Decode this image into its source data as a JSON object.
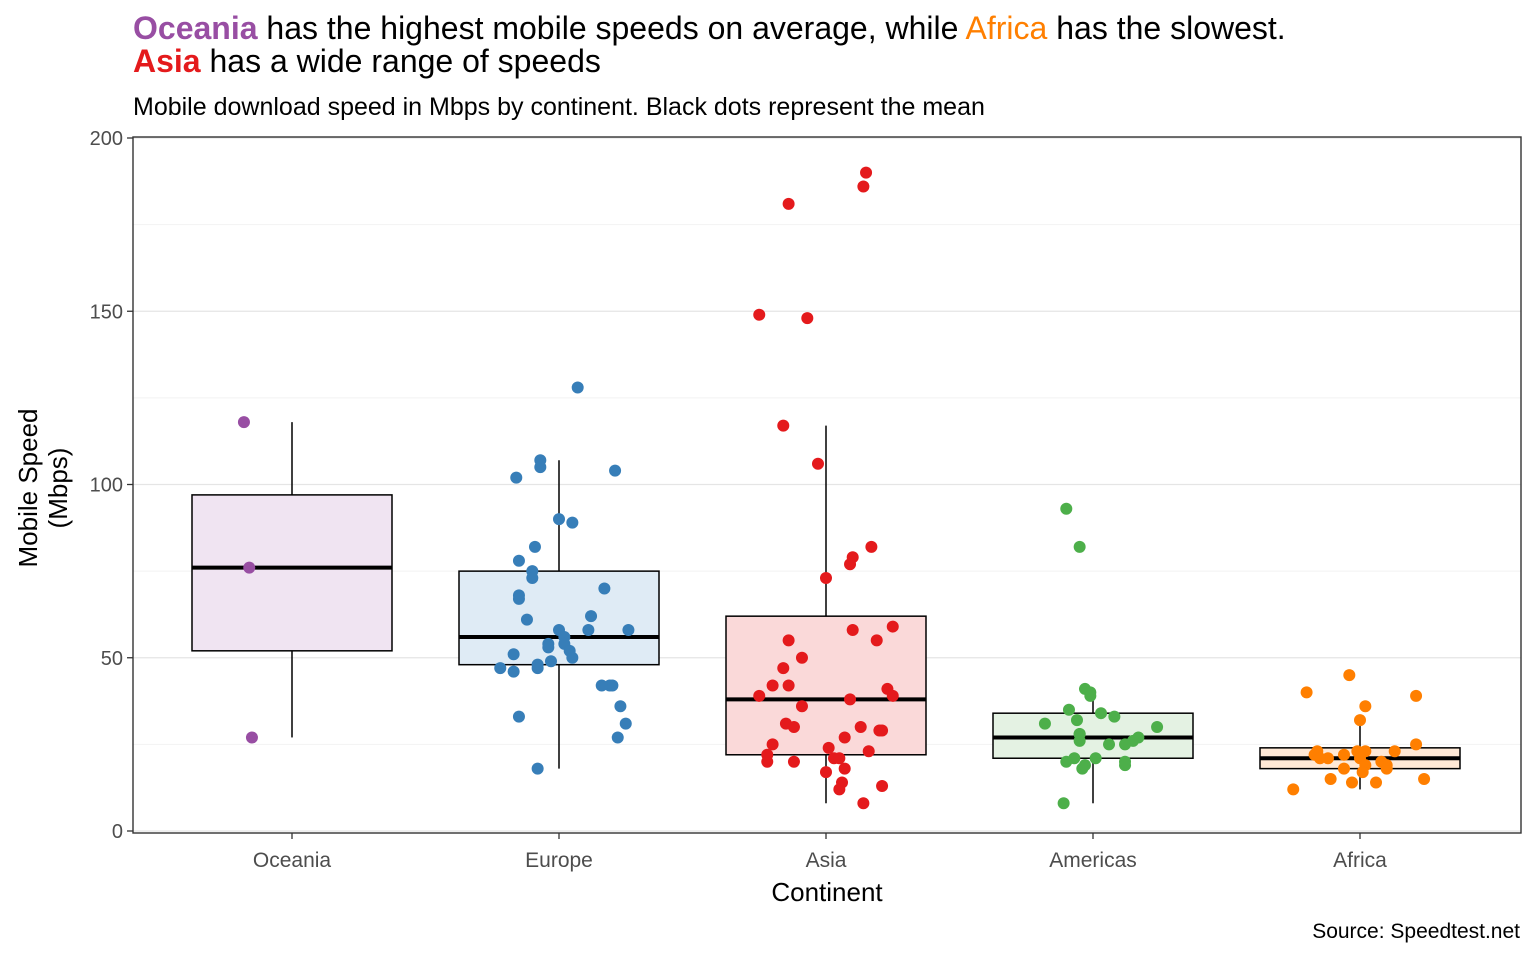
{
  "headline": {
    "line1": [
      {
        "text": "Oceania",
        "color": "#984EA3",
        "bold": true
      },
      {
        "text": " has the highest mobile speeds on average, while ",
        "color": "#000000",
        "bold": false
      },
      {
        "text": "Africa",
        "color": "#FF7F00",
        "bold": false
      },
      {
        "text": " has the slowest.",
        "color": "#000000",
        "bold": false
      }
    ],
    "line2": [
      {
        "text": "Asia",
        "color": "#E41A1C",
        "bold": true
      },
      {
        "text": " has a wide range of speeds",
        "color": "#000000",
        "bold": false
      }
    ]
  },
  "source": "Source: Speedtest.net",
  "chart_data": {
    "type": "box",
    "subtitle": "Mobile download speed in Mbps by continent. Black dots represent the mean",
    "xlabel": "Continent",
    "ylabel": [
      "Mobile Speed",
      "(Mbps)"
    ],
    "ylim": [
      0,
      200
    ],
    "yticks": [
      0,
      50,
      100,
      150,
      200
    ],
    "grid": "horizontal",
    "categories": [
      "Oceania",
      "Europe",
      "Asia",
      "Americas",
      "Africa"
    ],
    "series": [
      {
        "name": "Oceania",
        "color": "#984EA3",
        "fill": "#F0E4F2",
        "box": {
          "min": 27,
          "q1": 52,
          "median": 76,
          "q3": 97,
          "max": 118
        },
        "points": [
          [
            -0.18,
            118
          ],
          [
            -0.16,
            76
          ],
          [
            -0.15,
            27
          ]
        ]
      },
      {
        "name": "Europe",
        "color": "#377EB8",
        "fill": "#DFEBF5",
        "box": {
          "min": 18,
          "q1": 48,
          "median": 56,
          "q3": 75,
          "max": 107
        },
        "points": [
          [
            0.07,
            128
          ],
          [
            -0.07,
            107
          ],
          [
            -0.07,
            105
          ],
          [
            -0.16,
            102
          ],
          [
            0.21,
            104
          ],
          [
            0.0,
            90
          ],
          [
            0.05,
            89
          ],
          [
            -0.09,
            82
          ],
          [
            -0.15,
            78
          ],
          [
            -0.1,
            75
          ],
          [
            -0.1,
            73
          ],
          [
            0.17,
            70
          ],
          [
            -0.15,
            68
          ],
          [
            -0.15,
            67
          ],
          [
            0.12,
            62
          ],
          [
            -0.12,
            61
          ],
          [
            0.26,
            58
          ],
          [
            0.11,
            58
          ],
          [
            0.0,
            58
          ],
          [
            0.02,
            56
          ],
          [
            0.02,
            54
          ],
          [
            -0.04,
            54
          ],
          [
            -0.04,
            53
          ],
          [
            0.04,
            52
          ],
          [
            0.05,
            50
          ],
          [
            -0.17,
            51
          ],
          [
            -0.03,
            49
          ],
          [
            -0.08,
            48
          ],
          [
            -0.08,
            47
          ],
          [
            -0.22,
            47
          ],
          [
            -0.17,
            46
          ],
          [
            0.19,
            42
          ],
          [
            0.2,
            42
          ],
          [
            0.16,
            42
          ],
          [
            0.23,
            36
          ],
          [
            0.25,
            31
          ],
          [
            0.22,
            27
          ],
          [
            -0.15,
            33
          ],
          [
            -0.08,
            18
          ]
        ]
      },
      {
        "name": "Asia",
        "color": "#E41A1C",
        "fill": "#FAD9D9",
        "box": {
          "min": 8,
          "q1": 22,
          "median": 38,
          "q3": 62,
          "max": 117
        },
        "points": [
          [
            0.15,
            190
          ],
          [
            0.14,
            186
          ],
          [
            -0.14,
            181
          ],
          [
            -0.25,
            149
          ],
          [
            -0.07,
            148
          ],
          [
            -0.16,
            117
          ],
          [
            -0.03,
            106
          ],
          [
            0.17,
            82
          ],
          [
            0.1,
            79
          ],
          [
            0.09,
            77
          ],
          [
            0.0,
            73
          ],
          [
            0.25,
            59
          ],
          [
            0.1,
            58
          ],
          [
            0.19,
            55
          ],
          [
            -0.14,
            55
          ],
          [
            -0.09,
            50
          ],
          [
            -0.16,
            47
          ],
          [
            -0.2,
            42
          ],
          [
            -0.14,
            42
          ],
          [
            -0.25,
            39
          ],
          [
            0.23,
            41
          ],
          [
            0.25,
            39
          ],
          [
            0.09,
            38
          ],
          [
            -0.09,
            36
          ],
          [
            -0.15,
            31
          ],
          [
            -0.12,
            30
          ],
          [
            0.13,
            30
          ],
          [
            0.2,
            29
          ],
          [
            0.21,
            29
          ],
          [
            0.07,
            27
          ],
          [
            -0.2,
            25
          ],
          [
            0.01,
            24
          ],
          [
            0.16,
            23
          ],
          [
            -0.22,
            22
          ],
          [
            -0.22,
            20
          ],
          [
            -0.12,
            20
          ],
          [
            0.03,
            21
          ],
          [
            0.05,
            21
          ],
          [
            0.07,
            18
          ],
          [
            0.0,
            17
          ],
          [
            0.21,
            13
          ],
          [
            0.06,
            14
          ],
          [
            0.05,
            12
          ],
          [
            0.14,
            8
          ]
        ]
      },
      {
        "name": "Americas",
        "color": "#4DAF4A",
        "fill": "#E4F2E3",
        "box": {
          "min": 8,
          "q1": 21,
          "median": 27,
          "q3": 34,
          "max": 40
        },
        "points": [
          [
            -0.1,
            93
          ],
          [
            -0.05,
            82
          ],
          [
            -0.03,
            41
          ],
          [
            -0.01,
            40
          ],
          [
            -0.01,
            39
          ],
          [
            -0.09,
            35
          ],
          [
            0.03,
            34
          ],
          [
            0.08,
            33
          ],
          [
            -0.18,
            31
          ],
          [
            -0.06,
            32
          ],
          [
            0.24,
            30
          ],
          [
            -0.05,
            28
          ],
          [
            -0.05,
            28
          ],
          [
            0.17,
            27
          ],
          [
            0.15,
            26
          ],
          [
            -0.05,
            26
          ],
          [
            0.12,
            25
          ],
          [
            0.06,
            25
          ],
          [
            0.01,
            21
          ],
          [
            -0.07,
            21
          ],
          [
            -0.1,
            20
          ],
          [
            0.12,
            20
          ],
          [
            0.12,
            19
          ],
          [
            -0.03,
            19
          ],
          [
            -0.04,
            18
          ],
          [
            -0.11,
            8
          ]
        ]
      },
      {
        "name": "Africa",
        "color": "#FF7F00",
        "fill": "#FFE9D6",
        "box": {
          "min": 12,
          "q1": 18,
          "median": 21,
          "q3": 24,
          "max": 32
        },
        "points": [
          [
            -0.04,
            45
          ],
          [
            -0.2,
            40
          ],
          [
            0.21,
            39
          ],
          [
            0.02,
            36
          ],
          [
            0.0,
            32
          ],
          [
            0.21,
            25
          ],
          [
            -0.16,
            23
          ],
          [
            -0.17,
            22
          ],
          [
            -0.01,
            23
          ],
          [
            0.02,
            23
          ],
          [
            0.13,
            23
          ],
          [
            -0.06,
            22
          ],
          [
            -0.12,
            21
          ],
          [
            -0.15,
            21
          ],
          [
            0.0,
            21
          ],
          [
            0.08,
            20
          ],
          [
            0.02,
            19
          ],
          [
            0.1,
            19
          ],
          [
            0.1,
            18
          ],
          [
            -0.06,
            18
          ],
          [
            0.01,
            17
          ],
          [
            -0.11,
            15
          ],
          [
            0.24,
            15
          ],
          [
            -0.03,
            14
          ],
          [
            0.06,
            14
          ],
          [
            -0.25,
            12
          ]
        ]
      }
    ]
  }
}
